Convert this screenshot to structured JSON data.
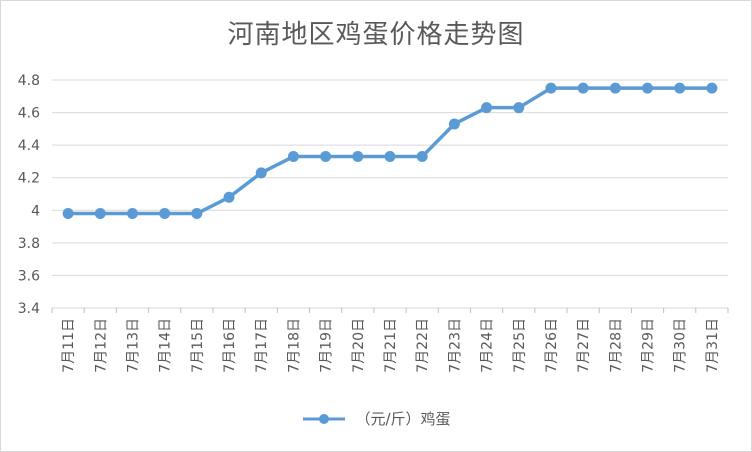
{
  "chart_data": {
    "type": "line",
    "title": "河南地区鸡蛋价格走势图",
    "categories": [
      "7月11日",
      "7月12日",
      "7月13日",
      "7月14日",
      "7月15日",
      "7月16日",
      "7月17日",
      "7月18日",
      "7月19日",
      "7月20日",
      "7月21日",
      "7月22日",
      "7月23日",
      "7月24日",
      "7月25日",
      "7月26日",
      "7月27日",
      "7月28日",
      "7月29日",
      "7月30日",
      "7月31日"
    ],
    "series": [
      {
        "name": "（元/斤）鸡蛋",
        "values": [
          3.98,
          3.98,
          3.98,
          3.98,
          3.98,
          4.08,
          4.23,
          4.33,
          4.33,
          4.33,
          4.33,
          4.33,
          4.53,
          4.63,
          4.63,
          4.75,
          4.75,
          4.75,
          4.75,
          4.75,
          4.75
        ],
        "color": "#5b9bd5"
      }
    ],
    "xlabel": "",
    "ylabel": "",
    "ylim": [
      3.4,
      4.8
    ],
    "yticks": [
      "3.4",
      "3.6",
      "3.8",
      "4",
      "4.2",
      "4.4",
      "4.6",
      "4.8"
    ],
    "grid": true,
    "legend_position": "bottom"
  }
}
